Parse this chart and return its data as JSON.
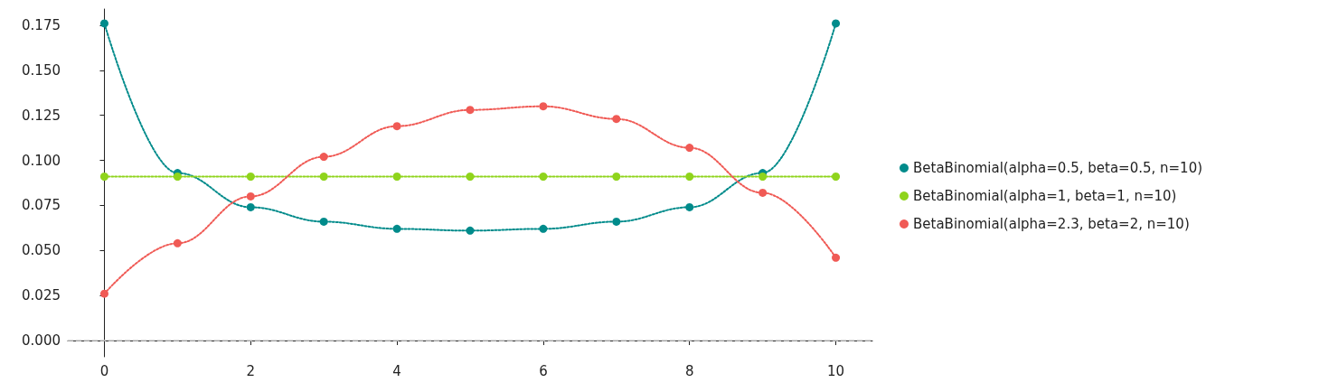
{
  "chart_data": {
    "type": "line",
    "x": [
      0,
      1,
      2,
      3,
      4,
      5,
      6,
      7,
      8,
      9,
      10
    ],
    "series": [
      {
        "name": "BetaBinomial(alpha=0.5, beta=0.5, n=10)",
        "color": "#008b8b",
        "values": [
          0.176,
          0.093,
          0.074,
          0.066,
          0.062,
          0.061,
          0.062,
          0.066,
          0.074,
          0.093,
          0.176
        ]
      },
      {
        "name": "BetaBinomial(alpha=1, beta=1, n=10)",
        "color": "#8fd41c",
        "values": [
          0.091,
          0.091,
          0.091,
          0.091,
          0.091,
          0.091,
          0.091,
          0.091,
          0.091,
          0.091,
          0.091
        ]
      },
      {
        "name": "BetaBinomial(alpha=2.3, beta=2, n=10)",
        "color": "#f05a55",
        "values": [
          0.026,
          0.054,
          0.08,
          0.102,
          0.119,
          0.128,
          0.13,
          0.123,
          0.107,
          0.082,
          0.046
        ]
      }
    ],
    "xlim": [
      -0.5,
      10.5
    ],
    "xticks": [
      0,
      2,
      4,
      6,
      8,
      10
    ],
    "ylim": [
      -0.009,
      0.184
    ],
    "yticks": [
      {
        "value": 0,
        "label": "0.000"
      },
      {
        "value": 0.025,
        "label": "0.025"
      },
      {
        "value": 0.05,
        "label": "0.050"
      },
      {
        "value": 0.075,
        "label": "0.075"
      },
      {
        "value": 0.1,
        "label": "0.100"
      },
      {
        "value": 0.125,
        "label": "0.125"
      },
      {
        "value": 0.15,
        "label": "0.150"
      },
      {
        "value": 0.175,
        "label": "0.175"
      }
    ],
    "ref_lines": [
      {
        "axis": "y",
        "value": 0,
        "color": "#cccccc",
        "line_style": "dashed"
      }
    ],
    "legend": "right",
    "grid": false,
    "marker": "circle",
    "line_style": "dotted"
  }
}
